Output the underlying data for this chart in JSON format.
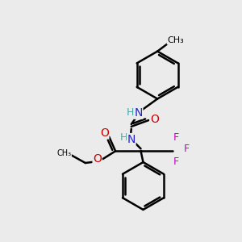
{
  "bg_color": "#ebebeb",
  "line_color": "black",
  "bond_width": 1.8,
  "atom_colors": {
    "N": "#2222cc",
    "O": "#cc0000",
    "F": "#cc00cc",
    "C": "black",
    "H": "#4da6a6"
  }
}
